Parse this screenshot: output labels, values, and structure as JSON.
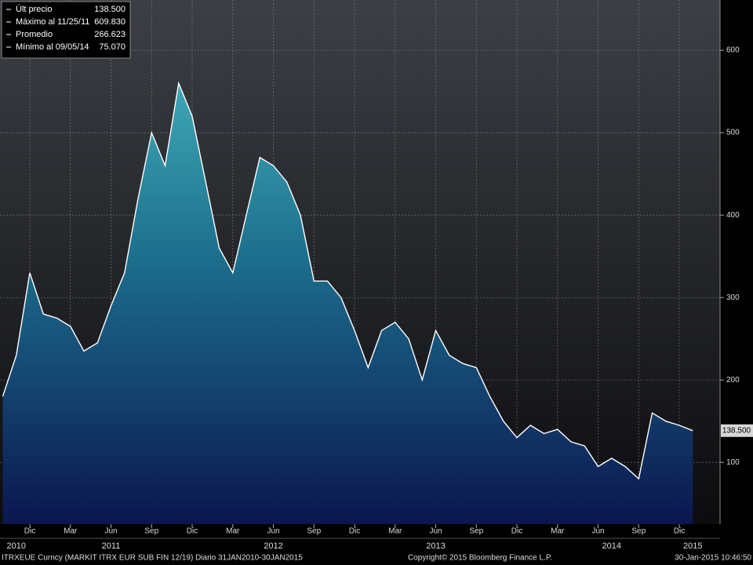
{
  "chart_data": {
    "type": "area",
    "x": [
      "2010-10",
      "2010-11",
      "2010-12",
      "2011-01",
      "2011-02",
      "2011-03",
      "2011-04",
      "2011-05",
      "2011-06",
      "2011-07",
      "2011-08",
      "2011-09",
      "2011-10",
      "2011-11",
      "2011-12",
      "2012-01",
      "2012-02",
      "2012-03",
      "2012-04",
      "2012-05",
      "2012-06",
      "2012-07",
      "2012-08",
      "2012-09",
      "2012-10",
      "2012-11",
      "2012-12",
      "2013-01",
      "2013-02",
      "2013-03",
      "2013-04",
      "2013-05",
      "2013-06",
      "2013-07",
      "2013-08",
      "2013-09",
      "2013-10",
      "2013-11",
      "2013-12",
      "2014-01",
      "2014-02",
      "2014-03",
      "2014-04",
      "2014-05",
      "2014-06",
      "2014-07",
      "2014-08",
      "2014-09",
      "2014-10",
      "2014-11",
      "2014-12",
      "2015-01"
    ],
    "series": [
      {
        "name": "ITRXEUE Curncy",
        "color": "#ffffff",
        "values": [
          180,
          230,
          330,
          280,
          275,
          265,
          235,
          245,
          290,
          330,
          420,
          500,
          460,
          560,
          520,
          440,
          360,
          330,
          400,
          470,
          460,
          440,
          400,
          320,
          320,
          300,
          260,
          215,
          260,
          270,
          250,
          200,
          260,
          230,
          220,
          215,
          180,
          150,
          130,
          145,
          135,
          140,
          125,
          120,
          95,
          105,
          95,
          80,
          160,
          150,
          145,
          138.5
        ]
      }
    ],
    "stats": [
      {
        "label": "Últ precio",
        "value": 138.5,
        "value_label": "138.500"
      },
      {
        "label": "Máximo al 11/25/11",
        "value": 609.83,
        "value_label": "609.830"
      },
      {
        "label": "Promedio",
        "value": 266.623,
        "value_label": "266.623"
      },
      {
        "label": "Mínimo al 09/05/14",
        "value": 75.07,
        "value_label": "75.070"
      }
    ],
    "last_price_label": "138.500",
    "ylim": [
      25,
      661
    ],
    "yticks": [
      100,
      200,
      300,
      400,
      500,
      600
    ],
    "xticks": [
      {
        "value": "2010-12",
        "label": "Dic"
      },
      {
        "value": "2011-03",
        "label": "Mar"
      },
      {
        "value": "2011-06",
        "label": "Jun"
      },
      {
        "value": "2011-09",
        "label": "Sep"
      },
      {
        "value": "2011-12",
        "label": "Dic"
      },
      {
        "value": "2012-03",
        "label": "Mar"
      },
      {
        "value": "2012-06",
        "label": "Jun"
      },
      {
        "value": "2012-09",
        "label": "Sep"
      },
      {
        "value": "2012-12",
        "label": "Dic"
      },
      {
        "value": "2013-03",
        "label": "Mar"
      },
      {
        "value": "2013-06",
        "label": "Jun"
      },
      {
        "value": "2013-09",
        "label": "Sep"
      },
      {
        "value": "2013-12",
        "label": "Dic"
      },
      {
        "value": "2014-03",
        "label": "Mar"
      },
      {
        "value": "2014-06",
        "label": "Jun"
      },
      {
        "value": "2014-09",
        "label": "Sep"
      },
      {
        "value": "2014-12",
        "label": "Dic"
      }
    ],
    "year_ticks": [
      {
        "value": "2010-11",
        "label": "2010"
      },
      {
        "value": "2011-06",
        "label": "2011"
      },
      {
        "value": "2012-06",
        "label": "2012"
      },
      {
        "value": "2013-06",
        "label": "2013"
      },
      {
        "value": "2014-07",
        "label": "2014"
      },
      {
        "value": "2015-01",
        "label": "2015"
      }
    ],
    "grid": true,
    "footer_left": "ITRXEUE Curncy (MARKIT ITRX EUR SUB FIN 12/19)  Diario 31JAN2010-30JAN2015",
    "footer_center": "Copyright© 2015 Bloomberg Finance L.P.",
    "footer_right": "30-Jan-2015 10:46:50"
  }
}
